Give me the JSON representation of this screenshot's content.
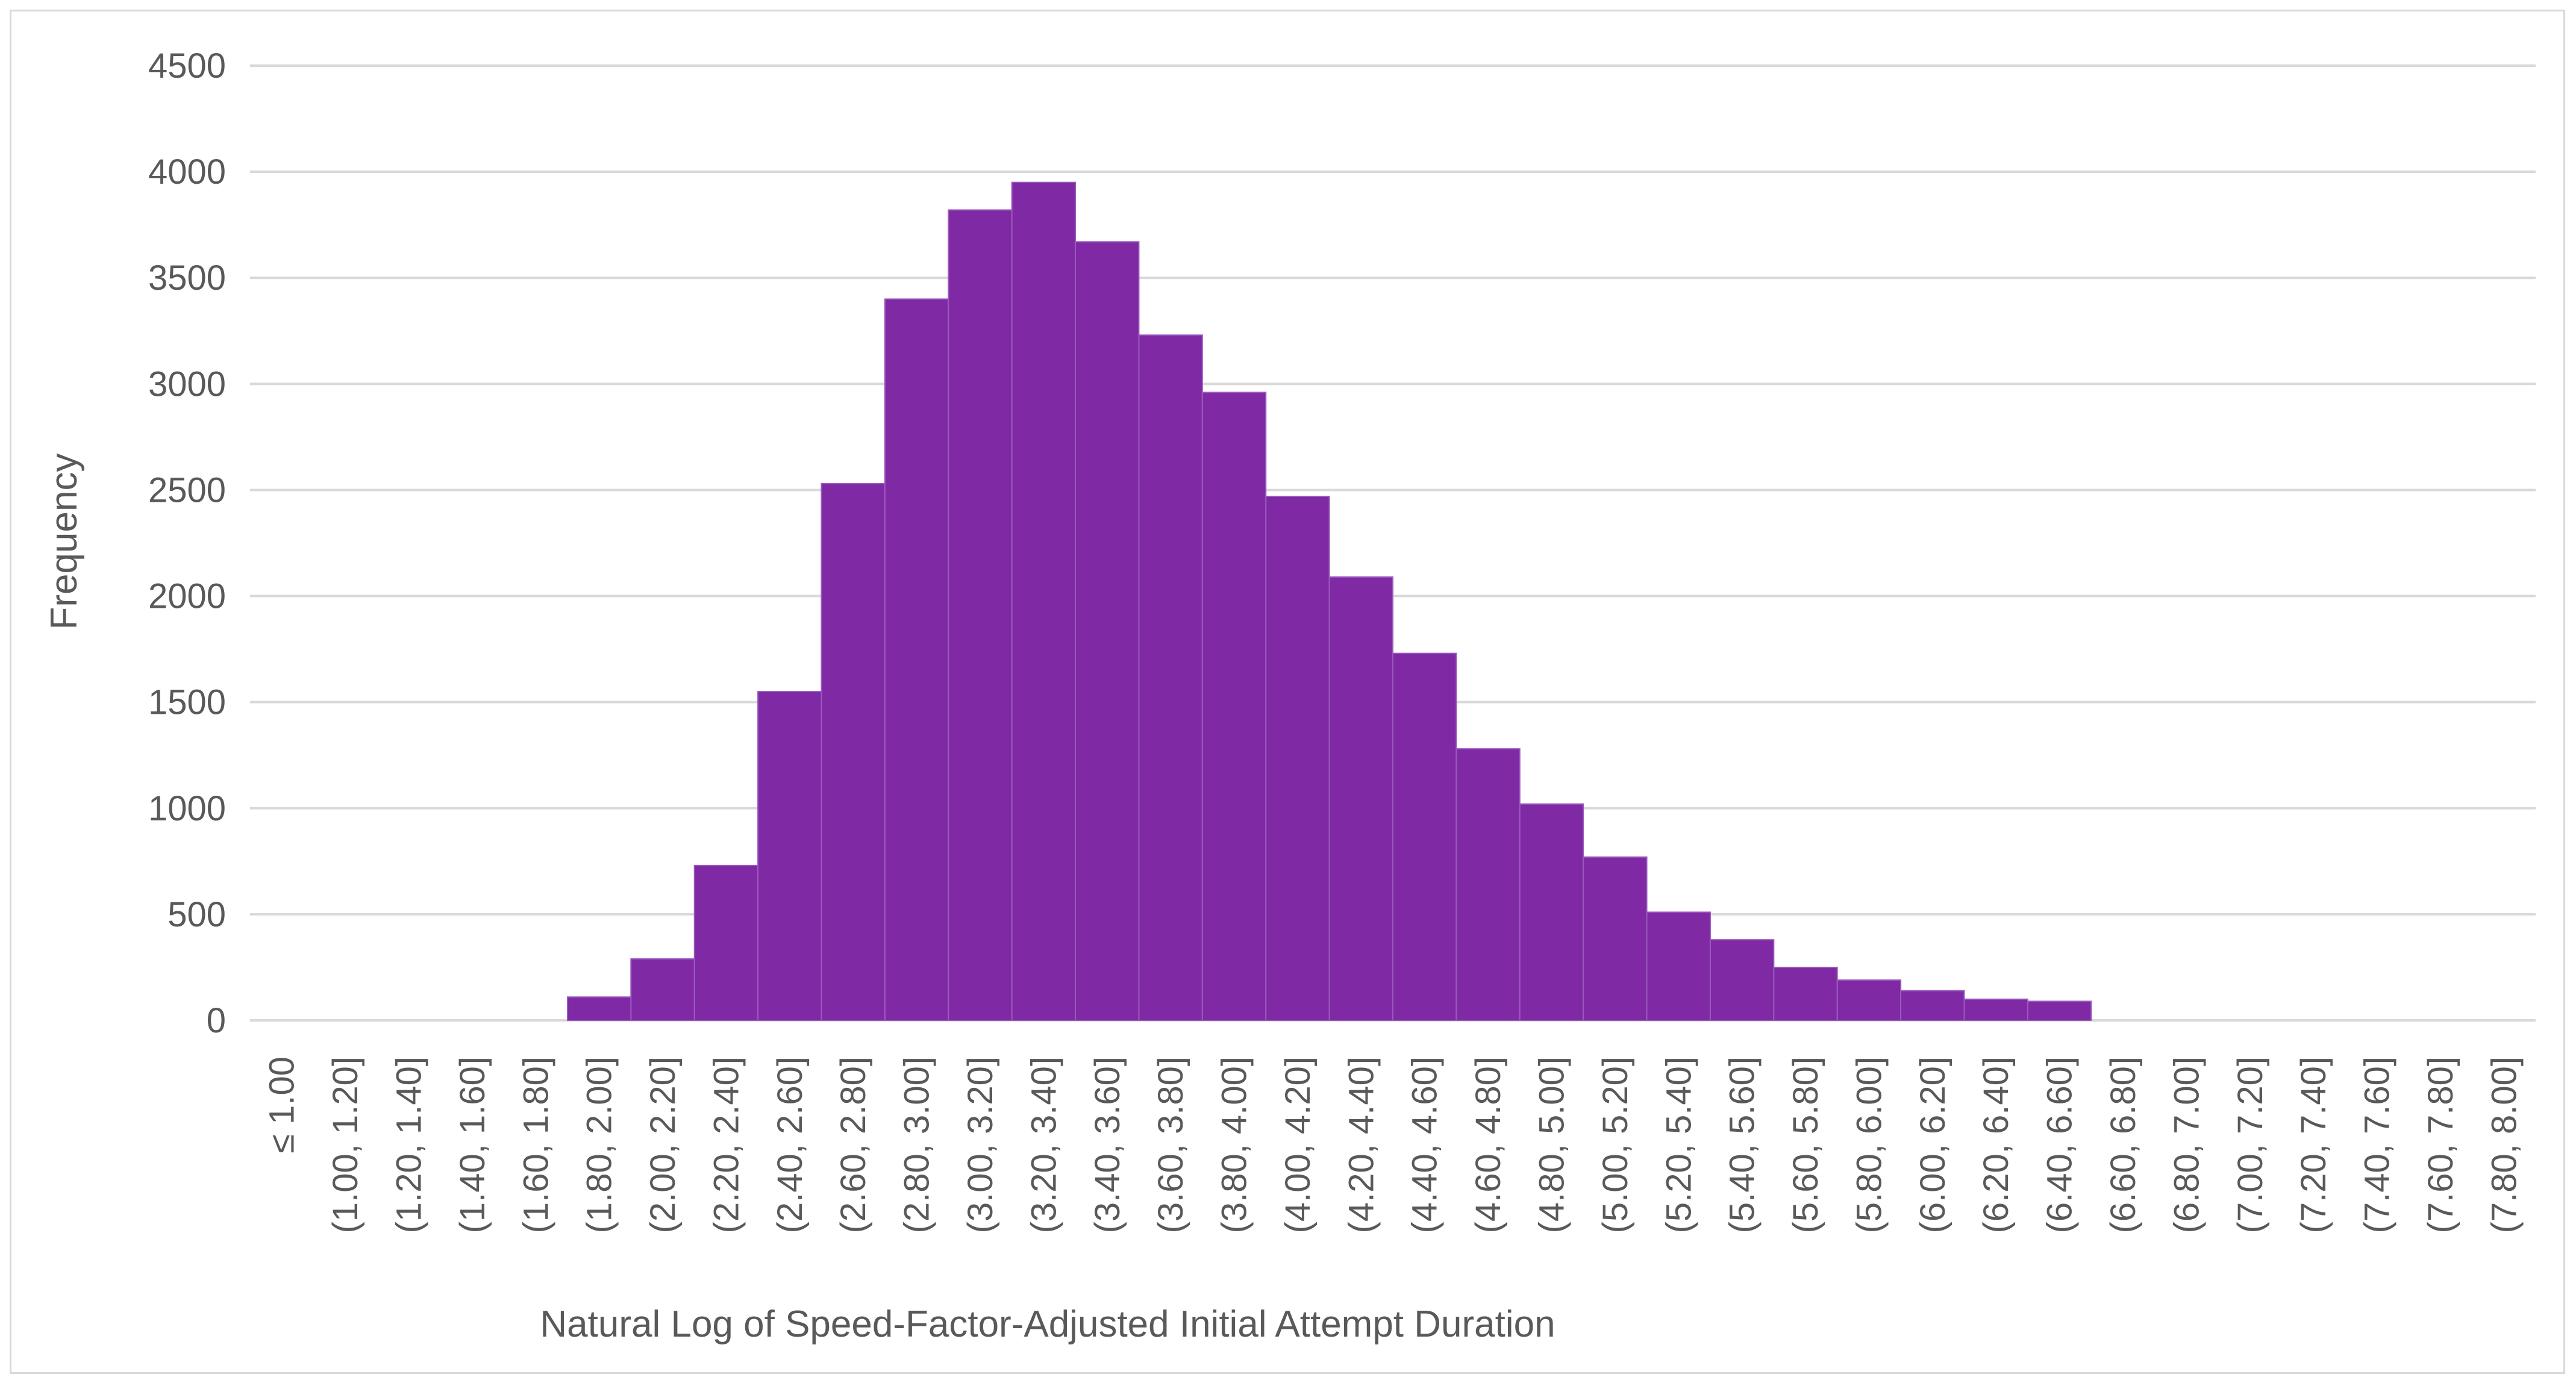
{
  "chart_data": {
    "type": "bar",
    "title": "",
    "xlabel": "Natural Log of Speed-Factor-Adjusted Initial Attempt Duration",
    "ylabel": "Frequency",
    "ylim": [
      0,
      4500
    ],
    "yticks": [
      "0",
      "500",
      "1000",
      "1500",
      "2000",
      "2500",
      "3000",
      "3500",
      "4000",
      "4500"
    ],
    "grid": true,
    "categories": [
      "≤ 1.00",
      "(1.00, 1.20]",
      "(1.20, 1.40]",
      "(1.40, 1.60]",
      "(1.60, 1.80]",
      "(1.80, 2.00]",
      "(2.00, 2.20]",
      "(2.20, 2.40]",
      "(2.40, 2.60]",
      "(2.60, 2.80]",
      "(2.80, 3.00]",
      "(3.00, 3.20]",
      "(3.20, 3.40]",
      "(3.40, 3.60]",
      "(3.60, 3.80]",
      "(3.80, 4.00]",
      "(4.00, 4.20]",
      "(4.20, 4.40]",
      "(4.40, 4.60]",
      "(4.60, 4.80]",
      "(4.80, 5.00]",
      "(5.00, 5.20]",
      "(5.20, 5.40]",
      "(5.40, 5.60]",
      "(5.60, 5.80]",
      "(5.80, 6.00]",
      "(6.00, 6.20]",
      "(6.20, 6.40]",
      "(6.40, 6.60]",
      "(6.60, 6.80]",
      "(6.80, 7.00]",
      "(7.00, 7.20]",
      "(7.20, 7.40]",
      "(7.40, 7.60]",
      "(7.60, 7.80]",
      "(7.80, 8.00]"
    ],
    "values": [
      0,
      0,
      0,
      0,
      0,
      110,
      290,
      730,
      1550,
      2530,
      3400,
      3820,
      3950,
      3670,
      3230,
      2960,
      2470,
      2090,
      1730,
      1280,
      1020,
      770,
      510,
      380,
      250,
      190,
      140,
      100,
      90,
      0,
      0,
      0,
      0,
      0,
      0,
      0
    ],
    "colors": {
      "bar": "#7f2aa4",
      "bar_edge": "#9b59bd",
      "grid": "#d9d9d9",
      "text": "#595959"
    }
  }
}
